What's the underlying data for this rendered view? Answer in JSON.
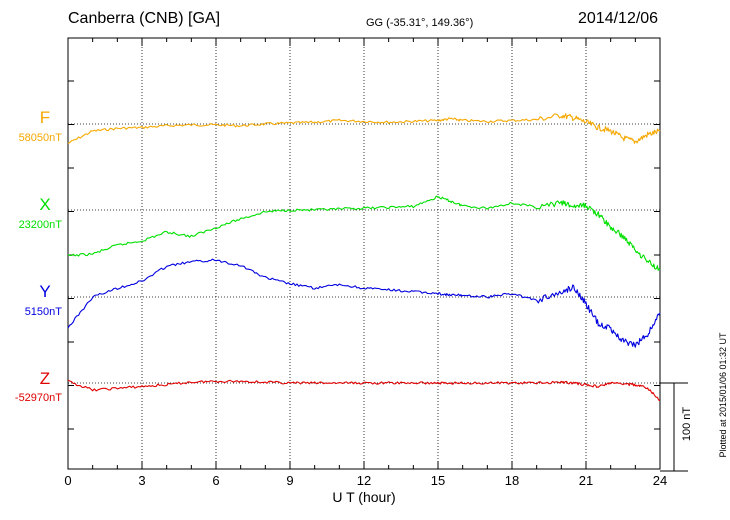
{
  "header": {
    "station": "Canberra (CNB)  [GA]",
    "coords": "GG (-35.31°, 149.36°)",
    "date": "2014/12/06"
  },
  "plotted_note": "Plotted at 2015/01/06 01:32 UT",
  "scale_label": "100 nT",
  "components": [
    {
      "name": "F",
      "baseline": "58050nT",
      "color": "#f5a800"
    },
    {
      "name": "X",
      "baseline": "23200nT",
      "color": "#00e000"
    },
    {
      "name": "Y",
      "baseline": "5150nT",
      "color": "#0000e0"
    },
    {
      "name": "Z",
      "baseline": "-52970nT",
      "color": "#e00000"
    }
  ],
  "chart_data": {
    "type": "line",
    "xlabel": "U T (hour)",
    "xlim": [
      0,
      24
    ],
    "x_ticks": [
      "0",
      "3",
      "6",
      "9",
      "12",
      "15",
      "18",
      "21",
      "24"
    ],
    "y_units": "nT offset from baseline",
    "y_scale_bar_nT": 100,
    "grid": true,
    "x": [
      0,
      1,
      2,
      3,
      4,
      5,
      6,
      7,
      8,
      9,
      10,
      11,
      12,
      13,
      14,
      15,
      15.5,
      16,
      17,
      18,
      19,
      20,
      20.5,
      21,
      21.5,
      22,
      22.5,
      23,
      23.5,
      24
    ],
    "series": [
      {
        "name": "F",
        "values": [
          -22,
          -8,
          -5,
          -4,
          -2,
          -1,
          -1,
          -2,
          0,
          1,
          2,
          4,
          3,
          2,
          3,
          4,
          6,
          4,
          3,
          4,
          5,
          10,
          7,
          2,
          -4,
          -8,
          -16,
          -20,
          -12,
          -8
        ]
      },
      {
        "name": "X",
        "values": [
          -52,
          -50,
          -40,
          -35,
          -25,
          -30,
          -20,
          -10,
          -2,
          0,
          0,
          1,
          2,
          3,
          4,
          15,
          10,
          5,
          2,
          8,
          3,
          8,
          4,
          5,
          -5,
          -20,
          -30,
          -45,
          -58,
          -68
        ]
      },
      {
        "name": "Y",
        "values": [
          -35,
          0,
          10,
          18,
          35,
          40,
          42,
          36,
          22,
          15,
          10,
          14,
          10,
          8,
          6,
          4,
          2,
          2,
          0,
          4,
          -4,
          5,
          12,
          -8,
          -30,
          -36,
          -50,
          -55,
          -42,
          -18
        ]
      },
      {
        "name": "Z",
        "values": [
          2,
          -8,
          -6,
          -4,
          -2,
          1,
          2,
          2,
          1,
          0,
          0,
          0,
          0,
          0,
          0,
          0,
          0,
          0,
          0,
          0,
          0,
          1,
          0,
          -2,
          -4,
          0,
          -1,
          -2,
          -6,
          -20
        ]
      }
    ]
  }
}
